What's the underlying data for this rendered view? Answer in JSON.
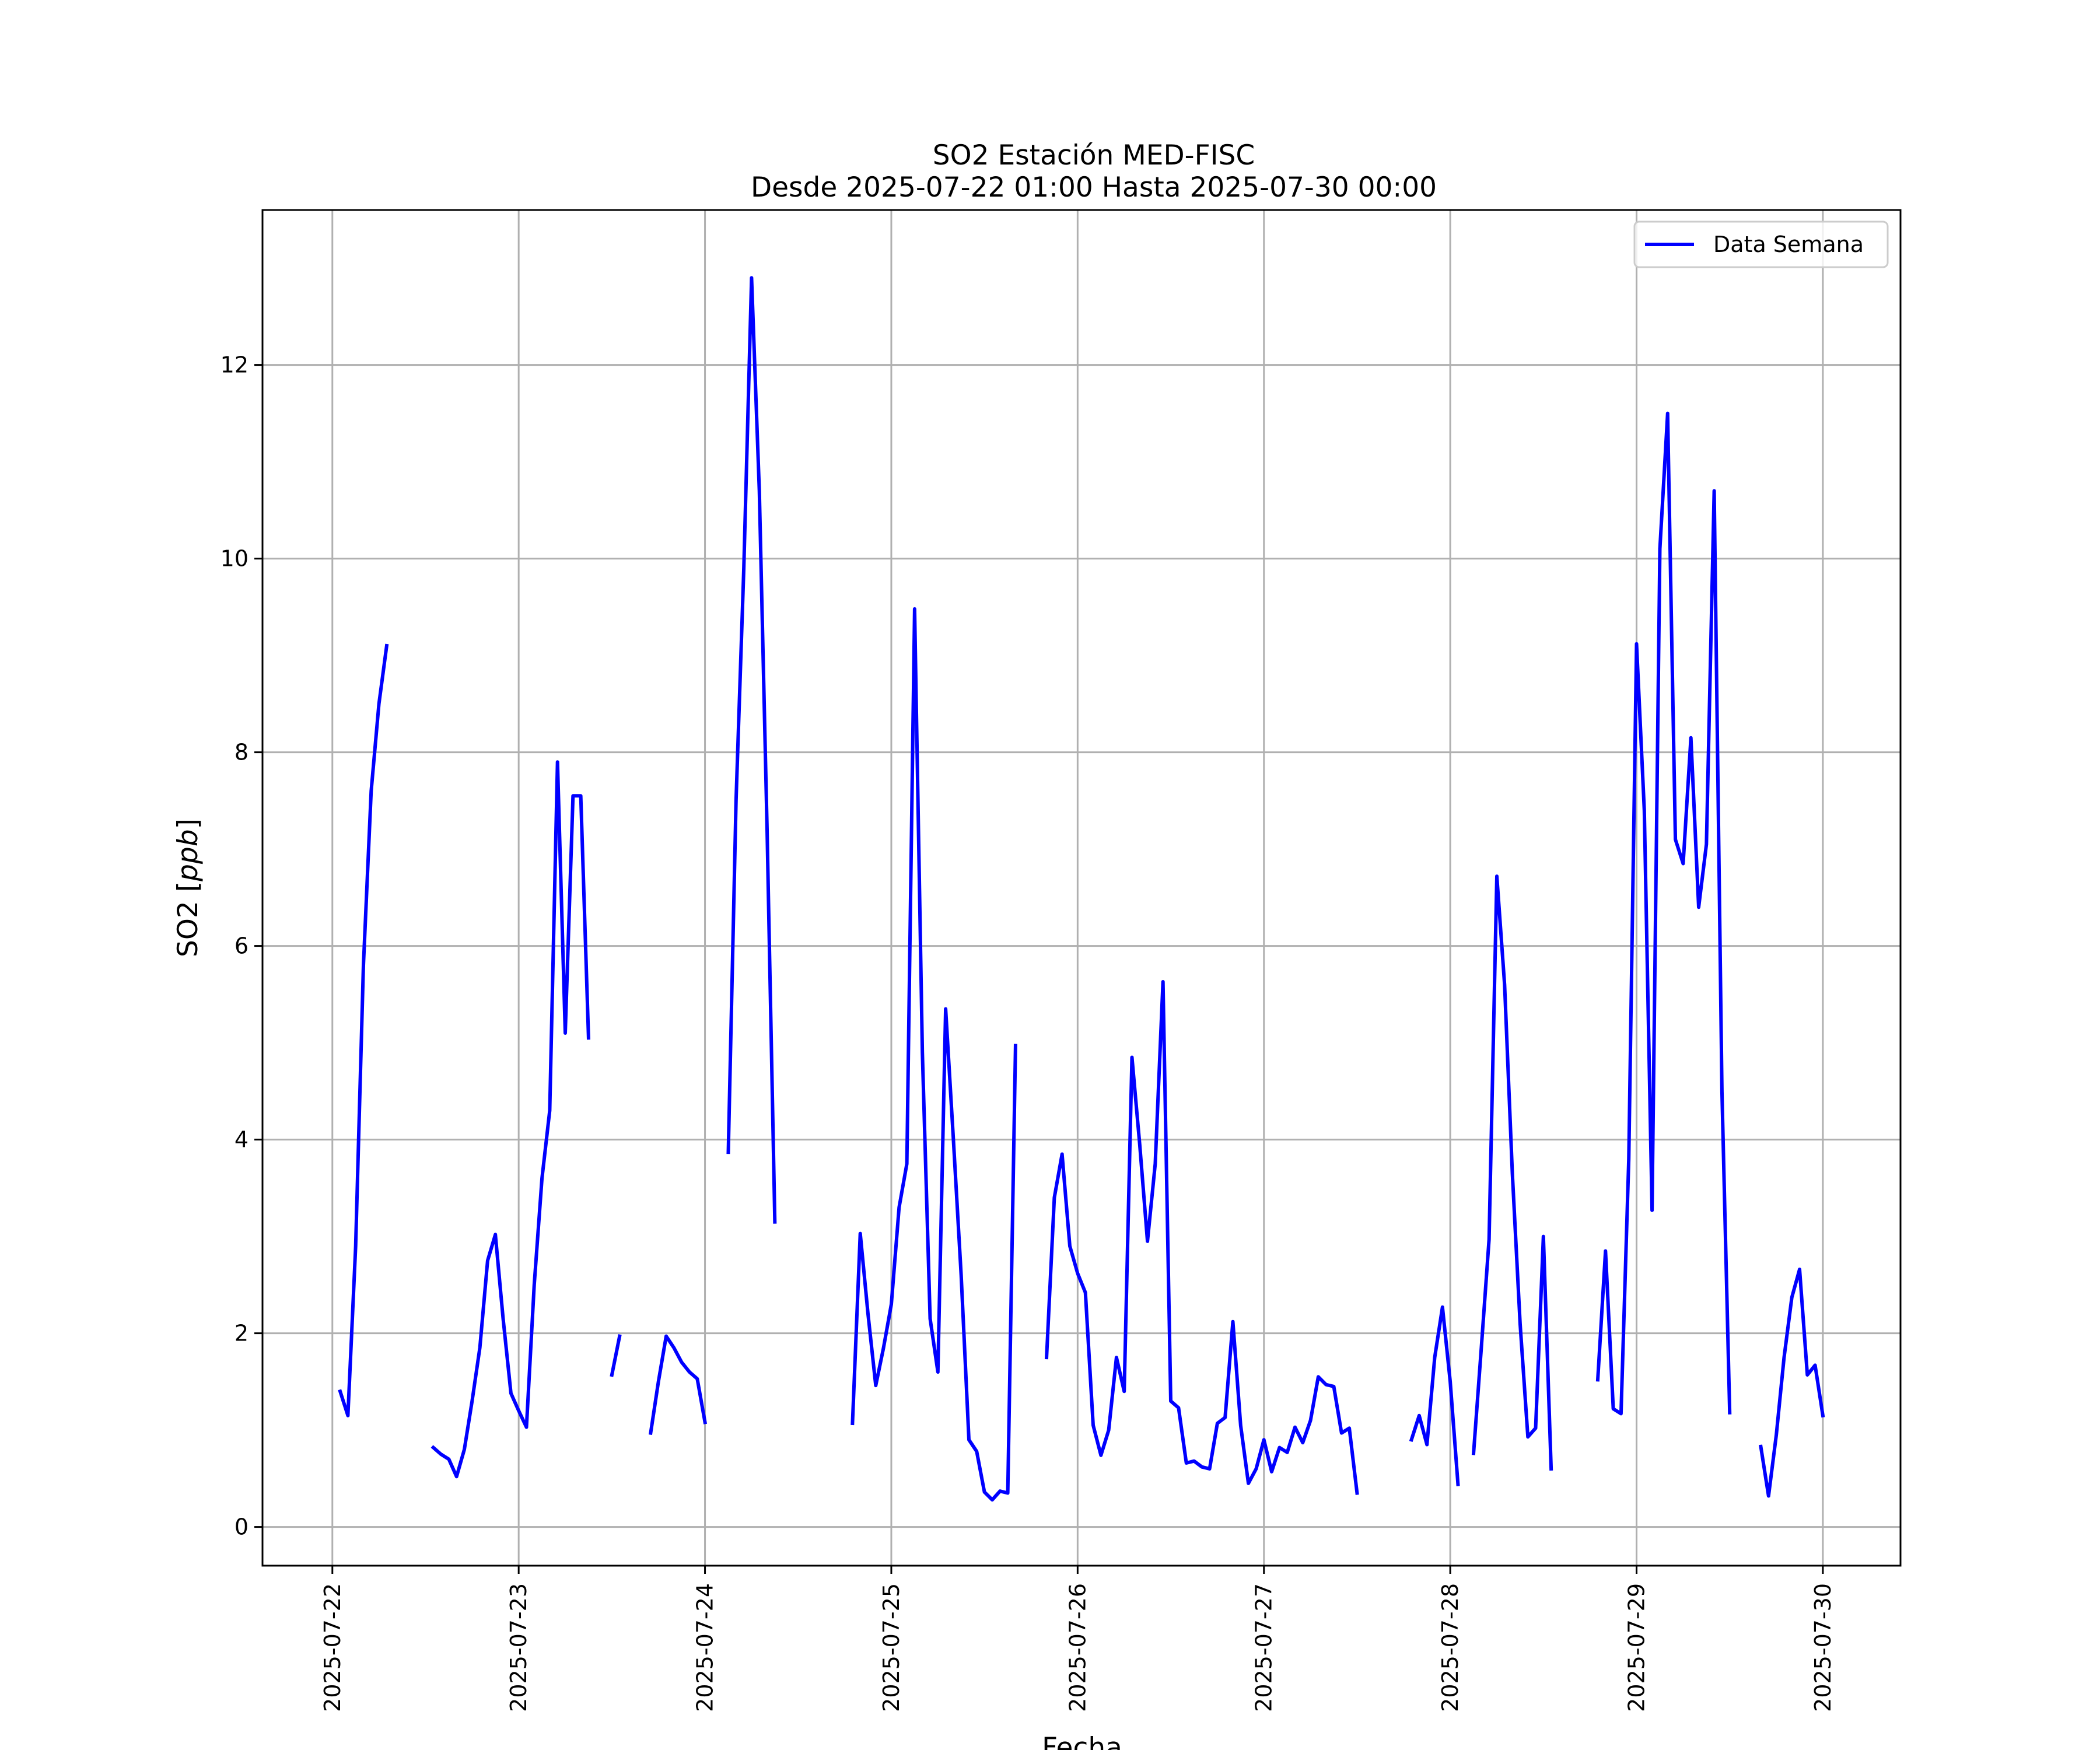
{
  "chart_data": {
    "type": "line",
    "title": "SO2 Estación MED-FISC",
    "subtitle": "Desde 2025-07-22 01:00 Hasta 2025-07-30 00:00",
    "xlabel": "Fecha",
    "ylabel": "SO2 [ppb]",
    "ylabel_plain": "SO2 [",
    "ylabel_italic": "ppb",
    "ylabel_close": "]",
    "x_type": "date",
    "xlim": [
      "2025-07-21 15:00",
      "2025-07-30 10:00"
    ],
    "ylim": [
      -0.4,
      13.6
    ],
    "x_ticks": [
      "2025-07-22",
      "2025-07-23",
      "2025-07-24",
      "2025-07-25",
      "2025-07-26",
      "2025-07-27",
      "2025-07-28",
      "2025-07-29",
      "2025-07-30"
    ],
    "y_ticks": [
      0,
      2,
      4,
      6,
      8,
      10,
      12
    ],
    "y_tick_labels": [
      "0",
      "2",
      "4",
      "6",
      "8",
      "10",
      "12"
    ],
    "grid": true,
    "legend_position": "top-right",
    "colors": {
      "series": "#0000ff",
      "grid": "#b0b0b0",
      "frame": "#000000"
    },
    "series": [
      {
        "name": "Data Semana",
        "color": "#0000ff",
        "segments": [
          [
            [
              "2025-07-22 01:00",
              1.4
            ],
            [
              "2025-07-22 02:00",
              1.15
            ],
            [
              "2025-07-22 03:00",
              2.9
            ],
            [
              "2025-07-22 04:00",
              5.8
            ],
            [
              "2025-07-22 05:00",
              7.6
            ],
            [
              "2025-07-22 06:00",
              8.5
            ],
            [
              "2025-07-22 07:00",
              9.1
            ]
          ],
          [
            [
              "2025-07-22 13:00",
              0.82
            ],
            [
              "2025-07-22 14:00",
              0.75
            ],
            [
              "2025-07-22 15:00",
              0.7
            ],
            [
              "2025-07-22 16:00",
              0.52
            ],
            [
              "2025-07-22 17:00",
              0.8
            ],
            [
              "2025-07-22 18:00",
              1.3
            ],
            [
              "2025-07-22 19:00",
              1.85
            ],
            [
              "2025-07-22 20:00",
              2.75
            ],
            [
              "2025-07-22 21:00",
              3.02
            ],
            [
              "2025-07-22 22:00",
              2.15
            ],
            [
              "2025-07-22 23:00",
              1.38
            ],
            [
              "2025-07-23 00:00",
              1.2
            ],
            [
              "2025-07-23 01:00",
              1.03
            ],
            [
              "2025-07-23 02:00",
              2.5
            ],
            [
              "2025-07-23 03:00",
              3.6
            ],
            [
              "2025-07-23 04:00",
              4.3
            ],
            [
              "2025-07-23 05:00",
              7.9
            ],
            [
              "2025-07-23 06:00",
              5.1
            ],
            [
              "2025-07-23 07:00",
              7.55
            ],
            [
              "2025-07-23 08:00",
              7.55
            ],
            [
              "2025-07-23 09:00",
              5.05
            ]
          ],
          [
            [
              "2025-07-23 12:00",
              1.57
            ],
            [
              "2025-07-23 13:00",
              1.97
            ]
          ],
          [
            [
              "2025-07-23 17:00",
              0.97
            ],
            [
              "2025-07-23 18:00",
              1.5
            ],
            [
              "2025-07-23 19:00",
              1.97
            ],
            [
              "2025-07-23 20:00",
              1.85
            ],
            [
              "2025-07-23 21:00",
              1.7
            ],
            [
              "2025-07-23 22:00",
              1.6
            ],
            [
              "2025-07-23 23:00",
              1.53
            ],
            [
              "2025-07-24 00:00",
              1.08
            ]
          ],
          [
            [
              "2025-07-24 03:00",
              3.87
            ],
            [
              "2025-07-24 04:00",
              7.5
            ],
            [
              "2025-07-24 05:00",
              9.9
            ],
            [
              "2025-07-24 06:00",
              12.9
            ],
            [
              "2025-07-24 07:00",
              10.7
            ],
            [
              "2025-07-24 08:00",
              7.2
            ],
            [
              "2025-07-24 09:00",
              3.15
            ]
          ],
          [
            [
              "2025-07-24 19:00",
              1.07
            ],
            [
              "2025-07-24 20:00",
              3.03
            ],
            [
              "2025-07-24 21:00",
              2.2
            ],
            [
              "2025-07-24 22:00",
              1.46
            ],
            [
              "2025-07-24 23:00",
              1.85
            ],
            [
              "2025-07-25 00:00",
              2.3
            ],
            [
              "2025-07-25 01:00",
              3.3
            ],
            [
              "2025-07-25 02:00",
              3.75
            ],
            [
              "2025-07-25 03:00",
              9.48
            ],
            [
              "2025-07-25 04:00",
              4.9
            ],
            [
              "2025-07-25 05:00",
              2.15
            ],
            [
              "2025-07-25 06:00",
              1.6
            ],
            [
              "2025-07-25 07:00",
              5.35
            ],
            [
              "2025-07-25 08:00",
              4.0
            ],
            [
              "2025-07-25 09:00",
              2.6
            ],
            [
              "2025-07-25 10:00",
              0.9
            ],
            [
              "2025-07-25 11:00",
              0.78
            ],
            [
              "2025-07-25 12:00",
              0.36
            ],
            [
              "2025-07-25 13:00",
              0.28
            ],
            [
              "2025-07-25 14:00",
              0.37
            ],
            [
              "2025-07-25 15:00",
              0.35
            ],
            [
              "2025-07-25 16:00",
              4.97
            ]
          ],
          [
            [
              "2025-07-25 20:00",
              1.75
            ],
            [
              "2025-07-25 21:00",
              3.4
            ],
            [
              "2025-07-25 22:00",
              3.85
            ],
            [
              "2025-07-25 23:00",
              2.9
            ],
            [
              "2025-07-26 00:00",
              2.62
            ],
            [
              "2025-07-26 01:00",
              2.42
            ],
            [
              "2025-07-26 02:00",
              1.05
            ],
            [
              "2025-07-26 03:00",
              0.74
            ],
            [
              "2025-07-26 04:00",
              1.0
            ],
            [
              "2025-07-26 05:00",
              1.75
            ],
            [
              "2025-07-26 06:00",
              1.4
            ],
            [
              "2025-07-26 07:00",
              4.85
            ],
            [
              "2025-07-26 08:00",
              3.95
            ],
            [
              "2025-07-26 09:00",
              2.95
            ],
            [
              "2025-07-26 10:00",
              3.75
            ],
            [
              "2025-07-26 11:00",
              5.63
            ],
            [
              "2025-07-26 12:00",
              1.3
            ],
            [
              "2025-07-26 13:00",
              1.23
            ],
            [
              "2025-07-26 14:00",
              0.66
            ],
            [
              "2025-07-26 15:00",
              0.68
            ],
            [
              "2025-07-26 16:00",
              0.62
            ],
            [
              "2025-07-26 17:00",
              0.6
            ],
            [
              "2025-07-26 18:00",
              1.07
            ],
            [
              "2025-07-26 19:00",
              1.13
            ],
            [
              "2025-07-26 20:00",
              2.12
            ],
            [
              "2025-07-26 21:00",
              1.05
            ],
            [
              "2025-07-26 22:00",
              0.45
            ],
            [
              "2025-07-26 23:00",
              0.6
            ],
            [
              "2025-07-27 00:00",
              0.9
            ],
            [
              "2025-07-27 01:00",
              0.57
            ],
            [
              "2025-07-27 02:00",
              0.82
            ],
            [
              "2025-07-27 03:00",
              0.77
            ],
            [
              "2025-07-27 04:00",
              1.03
            ],
            [
              "2025-07-27 05:00",
              0.87
            ],
            [
              "2025-07-27 06:00",
              1.1
            ],
            [
              "2025-07-27 07:00",
              1.55
            ],
            [
              "2025-07-27 08:00",
              1.47
            ],
            [
              "2025-07-27 09:00",
              1.45
            ],
            [
              "2025-07-27 10:00",
              0.97
            ],
            [
              "2025-07-27 11:00",
              1.02
            ],
            [
              "2025-07-27 12:00",
              0.35
            ]
          ],
          [
            [
              "2025-07-27 19:00",
              0.9
            ],
            [
              "2025-07-27 20:00",
              1.15
            ],
            [
              "2025-07-27 21:00",
              0.85
            ],
            [
              "2025-07-27 22:00",
              1.75
            ],
            [
              "2025-07-27 23:00",
              2.27
            ],
            [
              "2025-07-28 00:00",
              1.5
            ],
            [
              "2025-07-28 01:00",
              0.44
            ]
          ],
          [
            [
              "2025-07-28 03:00",
              0.76
            ],
            [
              "2025-07-28 04:00",
              1.85
            ],
            [
              "2025-07-28 05:00",
              2.97
            ],
            [
              "2025-07-28 06:00",
              6.72
            ],
            [
              "2025-07-28 07:00",
              5.6
            ],
            [
              "2025-07-28 08:00",
              3.65
            ],
            [
              "2025-07-28 09:00",
              2.1
            ],
            [
              "2025-07-28 10:00",
              0.93
            ],
            [
              "2025-07-28 11:00",
              1.02
            ],
            [
              "2025-07-28 12:00",
              3.0
            ],
            [
              "2025-07-28 13:00",
              0.6
            ]
          ],
          [
            [
              "2025-07-28 19:00",
              1.52
            ],
            [
              "2025-07-28 20:00",
              2.85
            ],
            [
              "2025-07-28 21:00",
              1.22
            ],
            [
              "2025-07-28 22:00",
              1.17
            ],
            [
              "2025-07-28 23:00",
              3.8
            ],
            [
              "2025-07-29 00:00",
              9.12
            ],
            [
              "2025-07-29 01:00",
              7.4
            ],
            [
              "2025-07-29 02:00",
              3.27
            ],
            [
              "2025-07-29 03:00",
              10.1
            ],
            [
              "2025-07-29 04:00",
              11.5
            ],
            [
              "2025-07-29 05:00",
              7.1
            ],
            [
              "2025-07-29 06:00",
              6.85
            ],
            [
              "2025-07-29 07:00",
              8.15
            ],
            [
              "2025-07-29 08:00",
              6.4
            ],
            [
              "2025-07-29 09:00",
              7.05
            ],
            [
              "2025-07-29 10:00",
              10.7
            ],
            [
              "2025-07-29 11:00",
              4.5
            ],
            [
              "2025-07-29 12:00",
              1.18
            ]
          ],
          [
            [
              "2025-07-29 16:00",
              0.83
            ],
            [
              "2025-07-29 17:00",
              0.32
            ],
            [
              "2025-07-29 18:00",
              0.95
            ],
            [
              "2025-07-29 19:00",
              1.75
            ],
            [
              "2025-07-29 20:00",
              2.37
            ],
            [
              "2025-07-29 21:00",
              2.66
            ],
            [
              "2025-07-29 22:00",
              1.57
            ],
            [
              "2025-07-29 23:00",
              1.67
            ],
            [
              "2025-07-30 00:00",
              1.15
            ]
          ]
        ]
      }
    ]
  }
}
